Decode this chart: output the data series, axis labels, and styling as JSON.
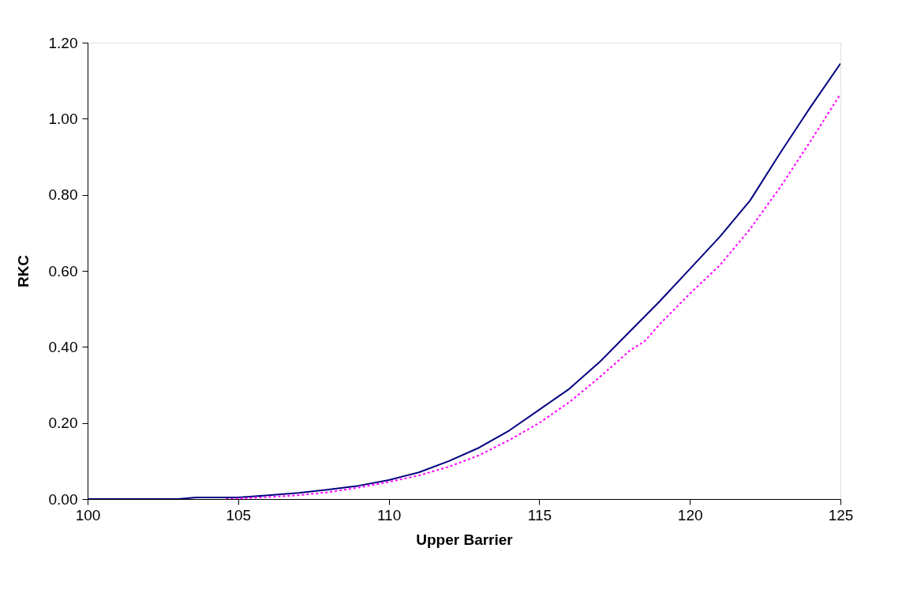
{
  "chart_data": {
    "type": "line",
    "xlabel": "Upper Barrier",
    "ylabel": "RKC",
    "xlim": [
      100,
      125
    ],
    "xticks": [
      100,
      105,
      110,
      115,
      120,
      125
    ],
    "ylim": [
      0,
      1.2
    ],
    "yticks": [
      {
        "value": 0,
        "label": "0.00"
      },
      {
        "value": 0.2,
        "label": "0.20"
      },
      {
        "value": 0.4,
        "label": "0.40"
      },
      {
        "value": 0.6,
        "label": "0.60"
      },
      {
        "value": 0.8,
        "label": "0.80"
      },
      {
        "value": 1.0,
        "label": "1.00"
      },
      {
        "value": 1.2,
        "label": "1.20"
      }
    ],
    "grid": false,
    "marker": "none",
    "series": [
      {
        "color": "#000080",
        "line_style": "solid",
        "x": [
          100,
          103,
          103.6,
          105,
          106,
          107,
          108,
          109,
          110,
          111,
          112,
          113,
          114,
          115,
          116,
          117,
          118,
          119,
          120,
          121,
          122,
          123,
          124,
          125
        ],
        "values": [
          0,
          0,
          0.004,
          0.004,
          0.01,
          0.016,
          0.025,
          0.035,
          0.05,
          0.07,
          0.1,
          0.135,
          0.18,
          0.235,
          0.29,
          0.36,
          0.44,
          0.52,
          0.605,
          0.69,
          0.785,
          0.91,
          1.03,
          1.145
        ]
      },
      {
        "color": "#ff00ff",
        "line_style": "dotted",
        "x": [
          104.6,
          106,
          107,
          108,
          109,
          110,
          111,
          112,
          113,
          114,
          115,
          116,
          117,
          118,
          118.5,
          119,
          120,
          121,
          122,
          123,
          124,
          125
        ],
        "values": [
          0,
          0.005,
          0.01,
          0.018,
          0.03,
          0.045,
          0.062,
          0.085,
          0.115,
          0.155,
          0.2,
          0.255,
          0.32,
          0.39,
          0.415,
          0.46,
          0.54,
          0.615,
          0.71,
          0.82,
          0.94,
          1.065
        ]
      }
    ]
  }
}
